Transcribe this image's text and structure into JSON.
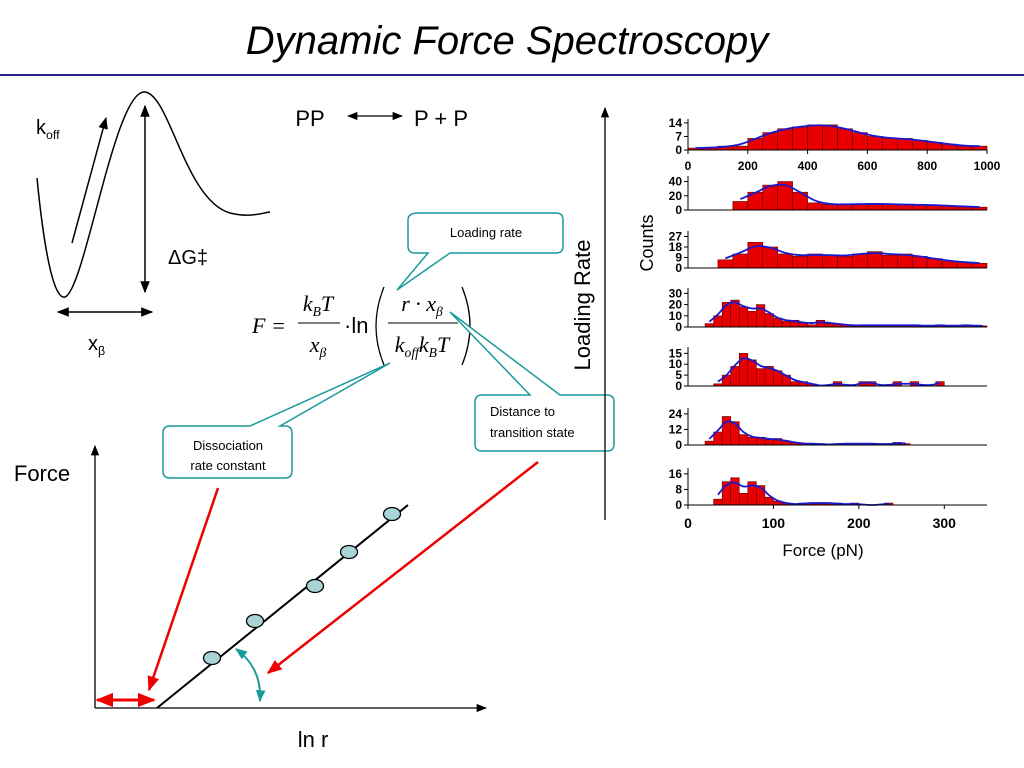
{
  "title": "Dynamic Force Spectroscopy",
  "energy_landscape": {
    "rate_label": [
      "k",
      "off"
    ],
    "barrier_label": "ΔG‡",
    "distance_label": [
      "x",
      "β"
    ]
  },
  "reaction": {
    "left": "PP",
    "right": "P + P"
  },
  "equation": {
    "lhs": "F =",
    "coef_num": [
      "k",
      "B",
      "T"
    ],
    "coef_den": [
      "x",
      "β"
    ],
    "operator": "·ln",
    "arg_num": [
      "r · x",
      "β"
    ],
    "arg_den": [
      "k",
      "off",
      "k",
      "B",
      "T"
    ]
  },
  "callouts": {
    "loading_rate": [
      "Loading rate"
    ],
    "dissociation": [
      "Dissociation",
      "rate constant"
    ],
    "distance": [
      "Distance to",
      "transition state"
    ]
  },
  "force_plot": {
    "y_label": "Force",
    "x_label": "ln r"
  },
  "loading_axis_label": "Loading Rate",
  "histograms": {
    "y_label": "Counts",
    "x_label": "Force (pN)",
    "panels": [
      {
        "xlim": [
          0,
          1000
        ],
        "xticks": [
          0,
          200,
          400,
          600,
          800,
          1000
        ],
        "ylim": [
          0,
          15
        ],
        "yticks": [
          0,
          7,
          14
        ],
        "bins": [
          0,
          50,
          100,
          150,
          200,
          250,
          300,
          350,
          400,
          450,
          500,
          550,
          600,
          650,
          700,
          750,
          800,
          850,
          900,
          950,
          1000
        ],
        "counts": [
          1,
          1,
          2,
          2,
          6,
          9,
          11,
          12,
          13,
          13,
          11,
          9,
          7,
          6,
          6,
          5,
          4,
          3,
          2,
          2
        ]
      },
      {
        "xlim": [
          0,
          1000
        ],
        "ylim": [
          0,
          45
        ],
        "yticks": [
          0,
          20,
          40
        ],
        "bins": [
          150,
          200,
          250,
          300,
          350,
          400,
          450,
          500,
          550,
          600,
          650,
          700,
          750,
          800,
          850,
          900,
          950,
          1000
        ],
        "counts": [
          12,
          25,
          35,
          40,
          25,
          10,
          8,
          8,
          8,
          9,
          8,
          8,
          7,
          7,
          6,
          5,
          4
        ]
      },
      {
        "xlim": [
          0,
          1000
        ],
        "ylim": [
          0,
          30
        ],
        "yticks": [
          0,
          9,
          18,
          27
        ],
        "bins": [
          100,
          150,
          200,
          250,
          300,
          350,
          400,
          450,
          500,
          550,
          600,
          650,
          700,
          750,
          800,
          850,
          900,
          950,
          1000
        ],
        "counts": [
          7,
          12,
          22,
          18,
          12,
          10,
          12,
          11,
          10,
          12,
          14,
          11,
          12,
          10,
          8,
          6,
          5,
          4
        ]
      },
      {
        "xlim": [
          0,
          350
        ],
        "ylim": [
          0,
          33
        ],
        "yticks": [
          0,
          10,
          20,
          30
        ],
        "bins": [
          20,
          30,
          40,
          50,
          60,
          70,
          80,
          90,
          100,
          110,
          120,
          130,
          140,
          150,
          160,
          170,
          180,
          190,
          200,
          210,
          220,
          230,
          240,
          250,
          260,
          270,
          280,
          290,
          300,
          310,
          320,
          330,
          340,
          350
        ],
        "counts": [
          3,
          10,
          22,
          24,
          18,
          14,
          20,
          12,
          8,
          5,
          6,
          4,
          2,
          6,
          3,
          3,
          2,
          1,
          2,
          1,
          2,
          1,
          2,
          1,
          2,
          1,
          1,
          2,
          1,
          1,
          2,
          1,
          1
        ]
      },
      {
        "xlim": [
          0,
          350
        ],
        "ylim": [
          0,
          17
        ],
        "yticks": [
          0,
          5,
          10,
          15
        ],
        "bins": [
          30,
          40,
          50,
          60,
          70,
          80,
          90,
          100,
          110,
          120,
          130,
          140,
          150,
          160,
          170,
          180,
          190,
          200,
          210,
          220,
          230,
          240,
          250,
          260,
          270,
          280,
          290,
          300
        ],
        "counts": [
          1,
          5,
          9,
          15,
          12,
          8,
          9,
          7,
          5,
          2,
          2,
          1,
          0,
          0,
          2,
          0,
          0,
          2,
          2,
          0,
          0,
          2,
          0,
          2,
          0,
          0,
          2
        ]
      },
      {
        "xlim": [
          0,
          350
        ],
        "ylim": [
          0,
          27
        ],
        "yticks": [
          0,
          12,
          24
        ],
        "bins": [
          20,
          30,
          40,
          50,
          60,
          70,
          80,
          90,
          100,
          110,
          120,
          130,
          140,
          150,
          160,
          170,
          180,
          190,
          200,
          210,
          220,
          230,
          240,
          250,
          260
        ],
        "counts": [
          3,
          10,
          22,
          18,
          8,
          6,
          6,
          4,
          5,
          3,
          2,
          1,
          1,
          1,
          0,
          1,
          1,
          1,
          1,
          1,
          1,
          0,
          2,
          1
        ]
      },
      {
        "xlim": [
          0,
          350
        ],
        "xticks": [
          0,
          100,
          200,
          300
        ],
        "ylim": [
          0,
          18
        ],
        "yticks": [
          0,
          8,
          16
        ],
        "bins": [
          30,
          40,
          50,
          60,
          70,
          80,
          90,
          100,
          110,
          120,
          130,
          140,
          150,
          160,
          170,
          180,
          190,
          200,
          210,
          220,
          230,
          240
        ],
        "counts": [
          3,
          12,
          14,
          6,
          12,
          10,
          4,
          2,
          1,
          0,
          1,
          1,
          1,
          1,
          1,
          0,
          1,
          0,
          0,
          0,
          1
        ]
      }
    ]
  }
}
